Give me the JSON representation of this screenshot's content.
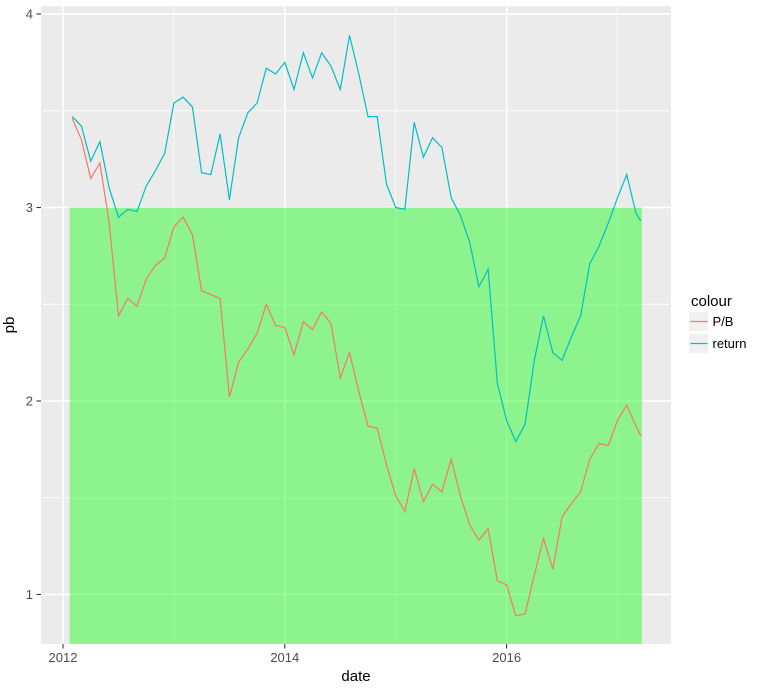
{
  "chart_data": {
    "type": "line",
    "title": "",
    "xlabel": "date",
    "ylabel": "pb",
    "frequency": "monthly (Feb 2012 - mid Mar 2017)",
    "xlim": [
      2011.8,
      2017.48
    ],
    "ylim": [
      0.74,
      4.04
    ],
    "x_ticks": [
      2012,
      2014,
      2016
    ],
    "x_tick_labels": [
      "2012",
      "2014",
      "2016"
    ],
    "x_minor_ticks": [
      2013,
      2015,
      2017
    ],
    "y_ticks": [
      1,
      2,
      3,
      4
    ],
    "y_tick_labels": [
      "1",
      "2",
      "3",
      "4"
    ],
    "y_minor_ticks": [
      1.5,
      2.5,
      3.5
    ],
    "grid": true,
    "annotation_rect": {
      "x0": 2012.06,
      "x1": 2017.22,
      "y0": "panel-bottom (~0.74)",
      "y0_value": 0.74,
      "y1": 3.0,
      "fill": "#00FF00",
      "alpha": 0.4
    },
    "dates": [
      "2012-02",
      "2012-03",
      "2012-04",
      "2012-05",
      "2012-06",
      "2012-07",
      "2012-08",
      "2012-09",
      "2012-10",
      "2012-11",
      "2012-12",
      "2013-01",
      "2013-02",
      "2013-03",
      "2013-04",
      "2013-05",
      "2013-06",
      "2013-07",
      "2013-08",
      "2013-09",
      "2013-10",
      "2013-11",
      "2013-12",
      "2014-01",
      "2014-02",
      "2014-03",
      "2014-04",
      "2014-05",
      "2014-06",
      "2014-07",
      "2014-08",
      "2014-09",
      "2014-10",
      "2014-11",
      "2014-12",
      "2015-01",
      "2015-02",
      "2015-03",
      "2015-04",
      "2015-05",
      "2015-06",
      "2015-07",
      "2015-08",
      "2015-09",
      "2015-10",
      "2015-11",
      "2015-12",
      "2016-01",
      "2016-02",
      "2016-03",
      "2016-04",
      "2016-05",
      "2016-06",
      "2016-07",
      "2016-08",
      "2016-09",
      "2016-10",
      "2016-11",
      "2016-12",
      "2017-01",
      "2017-02",
      "2017-03",
      "2017-03-20"
    ],
    "x_decimal": [
      2012.083,
      2012.167,
      2012.25,
      2012.333,
      2012.417,
      2012.5,
      2012.583,
      2012.667,
      2012.75,
      2012.833,
      2012.917,
      2013.0,
      2013.083,
      2013.167,
      2013.25,
      2013.333,
      2013.417,
      2013.5,
      2013.583,
      2013.667,
      2013.75,
      2013.833,
      2013.917,
      2014.0,
      2014.083,
      2014.167,
      2014.25,
      2014.333,
      2014.417,
      2014.5,
      2014.583,
      2014.667,
      2014.75,
      2014.833,
      2014.917,
      2015.0,
      2015.083,
      2015.167,
      2015.25,
      2015.333,
      2015.417,
      2015.5,
      2015.583,
      2015.667,
      2015.75,
      2015.833,
      2015.917,
      2016.0,
      2016.083,
      2016.167,
      2016.25,
      2016.333,
      2016.417,
      2016.5,
      2016.583,
      2016.667,
      2016.75,
      2016.833,
      2016.917,
      2017.0,
      2017.083,
      2017.167,
      2017.21
    ],
    "series": [
      {
        "name": "P/B",
        "color": "#F8766D",
        "values": [
          3.46,
          3.35,
          3.15,
          3.23,
          2.92,
          2.44,
          2.53,
          2.49,
          2.63,
          2.7,
          2.74,
          2.9,
          2.95,
          2.86,
          2.57,
          2.55,
          2.53,
          2.02,
          2.2,
          2.27,
          2.35,
          2.5,
          2.39,
          2.38,
          2.24,
          2.41,
          2.37,
          2.46,
          2.4,
          2.12,
          2.25,
          2.05,
          1.87,
          1.86,
          1.67,
          1.51,
          1.43,
          1.65,
          1.48,
          1.57,
          1.53,
          1.7,
          1.51,
          1.36,
          1.28,
          1.34,
          1.07,
          1.05,
          0.89,
          0.9,
          1.1,
          1.29,
          1.13,
          1.4,
          1.47,
          1.53,
          1.7,
          1.78,
          1.77,
          1.9,
          1.98,
          1.87,
          1.82
        ]
      },
      {
        "name": "return",
        "color": "#00BFC4",
        "values": [
          3.47,
          3.42,
          3.24,
          3.34,
          3.1,
          2.95,
          2.99,
          2.98,
          3.11,
          3.19,
          3.28,
          3.54,
          3.57,
          3.52,
          3.18,
          3.17,
          3.38,
          3.04,
          3.36,
          3.49,
          3.54,
          3.72,
          3.69,
          3.75,
          3.61,
          3.8,
          3.67,
          3.8,
          3.73,
          3.61,
          3.89,
          3.69,
          3.47,
          3.47,
          3.12,
          3.0,
          2.99,
          3.44,
          3.26,
          3.36,
          3.31,
          3.05,
          2.96,
          2.82,
          2.59,
          2.68,
          2.09,
          1.9,
          1.79,
          1.88,
          2.21,
          2.44,
          2.25,
          2.21,
          2.33,
          2.44,
          2.71,
          2.8,
          2.92,
          3.05,
          3.17,
          2.97,
          2.93
        ]
      }
    ],
    "legend": {
      "title": "colour",
      "position": "right",
      "entries": [
        "P/B",
        "return"
      ]
    },
    "theme_colors": {
      "panel_background": "#EBEBEB",
      "grid_major": "#FFFFFF",
      "grid_minor": "#FFFFFF",
      "tick_mark": "#333333",
      "tick_label": "#4D4D4D",
      "legend_key": "#F0F0F0",
      "plot_background": "#FFFFFF"
    }
  }
}
